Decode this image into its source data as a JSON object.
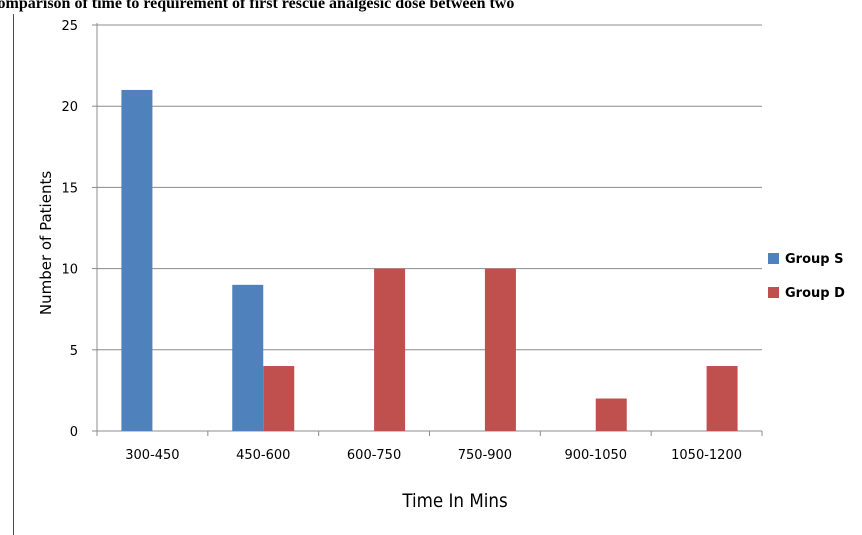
{
  "title": "Comparison of time to requirement of first rescue analgesic dose between two",
  "chart_data": {
    "type": "bar",
    "categories": [
      "300-450",
      "450-600",
      "600-750",
      "750-900",
      "900-1050",
      "1050-1200"
    ],
    "series": [
      {
        "name": "Group S",
        "values": [
          21,
          9,
          0,
          0,
          0,
          0
        ],
        "color": "#4f81bd"
      },
      {
        "name": "Group D",
        "values": [
          0,
          4,
          10,
          10,
          2,
          4
        ],
        "color": "#c0504d"
      }
    ],
    "xlabel": "Time In Mins",
    "ylabel": "Number of Patients",
    "ylim": [
      0,
      25
    ],
    "yticks": [
      0,
      5,
      10,
      15,
      20,
      25
    ],
    "grid": true,
    "legend": "right"
  }
}
